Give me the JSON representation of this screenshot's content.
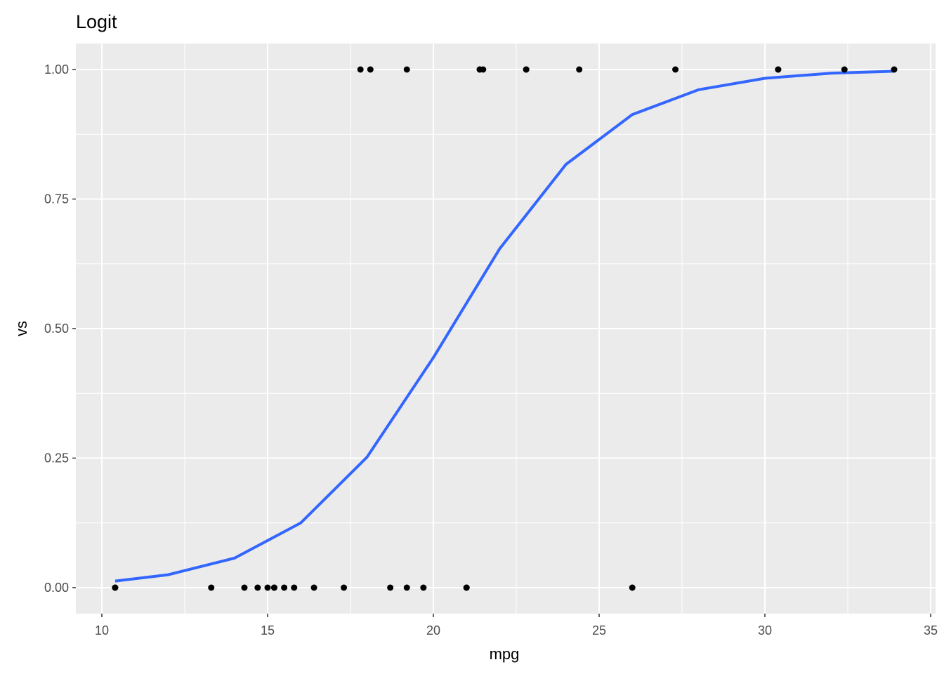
{
  "chart_data": {
    "type": "scatter",
    "title": "Logit",
    "xlabel": "mpg",
    "ylabel": "vs",
    "xlim": [
      9.2,
      35.1
    ],
    "ylim": [
      -0.05,
      1.05
    ],
    "x_ticks": [
      10,
      15,
      20,
      25,
      30,
      35
    ],
    "x_tick_labels": [
      "10",
      "15",
      "20",
      "25",
      "30",
      "35"
    ],
    "y_ticks": [
      0,
      0.25,
      0.5,
      0.75,
      1
    ],
    "y_tick_labels": [
      "0.00",
      "0.25",
      "0.50",
      "0.75",
      "1.00"
    ],
    "grid": true,
    "background": "#ebebeb",
    "points": {
      "color": "#000000",
      "x": [
        21.0,
        21.0,
        22.8,
        21.4,
        18.7,
        18.1,
        14.3,
        24.4,
        22.8,
        19.2,
        17.8,
        16.4,
        17.3,
        15.2,
        10.4,
        10.4,
        14.7,
        32.4,
        30.4,
        33.9,
        21.5,
        15.5,
        15.2,
        13.3,
        19.2,
        27.3,
        26.0,
        30.4,
        15.8,
        19.7,
        15.0,
        21.4
      ],
      "y": [
        0,
        0,
        1,
        1,
        0,
        1,
        0,
        1,
        1,
        1,
        1,
        0,
        0,
        0,
        0,
        0,
        0,
        1,
        1,
        1,
        1,
        0,
        0,
        0,
        0,
        1,
        0,
        1,
        0,
        0,
        0,
        1
      ]
    },
    "fit_line": {
      "color": "#3366ff",
      "x": [
        10.4,
        12,
        14,
        16,
        18,
        20,
        22,
        24,
        26,
        28,
        30,
        32,
        33.9
      ],
      "y": [
        0.0127,
        0.0249,
        0.0569,
        0.125,
        0.252,
        0.444,
        0.654,
        0.817,
        0.913,
        0.961,
        0.983,
        0.9929,
        0.9968
      ]
    }
  }
}
